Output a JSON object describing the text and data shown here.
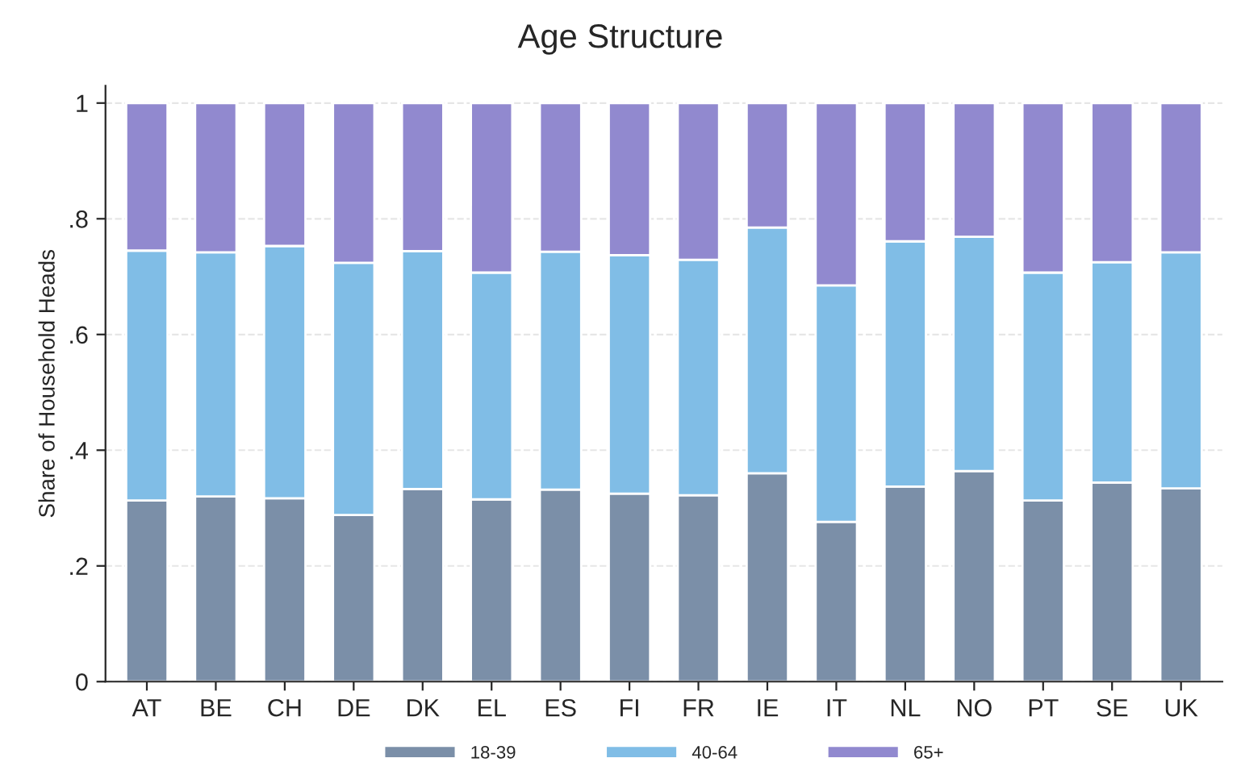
{
  "chart_data": {
    "type": "bar",
    "title": "Age Structure",
    "ylabel": "Share of Household Heads",
    "stacked": true,
    "categories": [
      "AT",
      "BE",
      "CH",
      "DE",
      "DK",
      "EL",
      "ES",
      "FI",
      "FR",
      "IE",
      "IT",
      "NL",
      "NO",
      "PT",
      "SE",
      "UK"
    ],
    "series": [
      {
        "name": "18-39",
        "color": "#7b8fa8",
        "values": [
          0.313,
          0.32,
          0.317,
          0.288,
          0.333,
          0.315,
          0.332,
          0.325,
          0.322,
          0.36,
          0.276,
          0.337,
          0.364,
          0.313,
          0.344,
          0.334
        ]
      },
      {
        "name": "40-64",
        "color": "#80bde6",
        "values": [
          0.432,
          0.422,
          0.436,
          0.436,
          0.411,
          0.392,
          0.411,
          0.412,
          0.407,
          0.425,
          0.409,
          0.424,
          0.405,
          0.394,
          0.381,
          0.408
        ]
      },
      {
        "name": "65+",
        "color": "#9189cf",
        "values": [
          0.255,
          0.258,
          0.247,
          0.276,
          0.256,
          0.293,
          0.257,
          0.263,
          0.271,
          0.215,
          0.315,
          0.239,
          0.231,
          0.293,
          0.275,
          0.258
        ]
      }
    ],
    "ylim": [
      0,
      1.03
    ],
    "yticks": [
      {
        "value": 0,
        "label": "0"
      },
      {
        "value": 0.2,
        "label": ".2"
      },
      {
        "value": 0.4,
        "label": ".4"
      },
      {
        "value": 0.6,
        "label": ".6"
      },
      {
        "value": 0.8,
        "label": ".8"
      },
      {
        "value": 1,
        "label": "1"
      }
    ],
    "grid": "y",
    "legend": "bottom"
  }
}
